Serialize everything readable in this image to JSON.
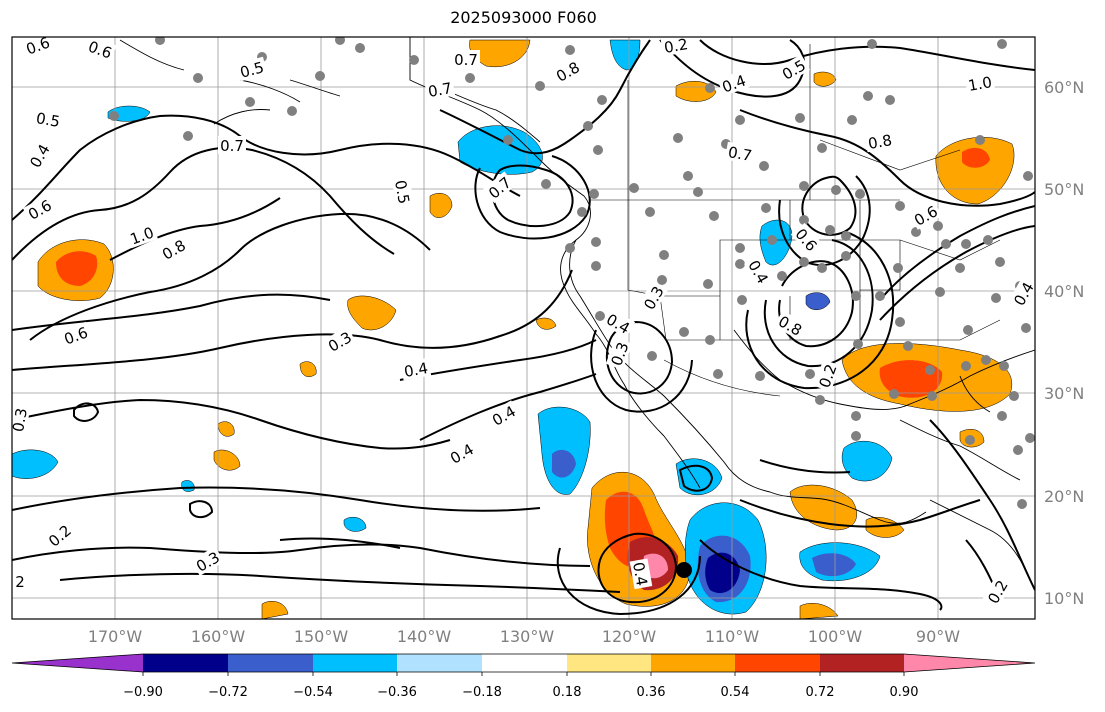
{
  "title": "2025093000 F060",
  "lon_labels": [
    "170°W",
    "160°W",
    "150°W",
    "140°W",
    "130°W",
    "120°W",
    "110°W",
    "100°W",
    "90°W"
  ],
  "lat_labels": [
    "60°N",
    "50°N",
    "40°N",
    "30°N",
    "20°N",
    "10°N"
  ],
  "colorbar": {
    "tick_labels": [
      "−0.90",
      "−0.72",
      "−0.54",
      "−0.36",
      "−0.18",
      "0.18",
      "0.36",
      "0.54",
      "0.72",
      "0.90"
    ],
    "colors": [
      "#9932cc",
      "#00008b",
      "#3a5fcd",
      "#00bfff",
      "#b0e2ff",
      "#ffffff",
      "#ffe680",
      "#ffa500",
      "#ff4500",
      "#b22222",
      "#ff88aa"
    ]
  },
  "contour_labels": [
    "0.6",
    "0.6",
    "0.5",
    "0.7",
    "0.7",
    "0.8",
    "0.2",
    "0.5",
    "0.4",
    "1.0",
    "0.5",
    "0.7",
    "0.4",
    "0.7",
    "0.8",
    "0.5",
    "0.7",
    "0.6",
    "0.6",
    "0.6",
    "1.0",
    "0.8",
    "0.6",
    "0.4",
    "0.3",
    "0.4",
    "0.8",
    "0.3",
    "0.4",
    "0.3",
    "0.4",
    "0.4",
    "0.3",
    "0.2",
    "0.3",
    "0.2",
    "2",
    "0.4",
    "0.2",
    "0.4"
  ]
}
